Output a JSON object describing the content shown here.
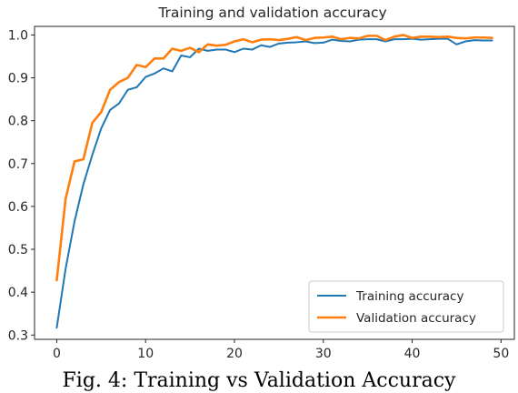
{
  "caption": "Fig. 4: Training vs Validation Accuracy",
  "chart_data": {
    "type": "line",
    "title": "Training and validation accuracy",
    "xlabel": "",
    "ylabel": "",
    "xlim": [
      -2.5,
      51.5
    ],
    "ylim": [
      0.29,
      1.02
    ],
    "xticks": [
      0,
      10,
      20,
      30,
      40,
      50
    ],
    "yticks": [
      0.3,
      0.4,
      0.5,
      0.6,
      0.7,
      0.8,
      0.9,
      1.0
    ],
    "ytick_labels": [
      "0.3",
      "0.4",
      "0.5",
      "0.6",
      "0.7",
      "0.8",
      "0.9",
      "1.0"
    ],
    "grid": false,
    "legend_position": "lower-right",
    "x": [
      0,
      1,
      2,
      3,
      4,
      5,
      6,
      7,
      8,
      9,
      10,
      11,
      12,
      13,
      14,
      15,
      16,
      17,
      18,
      19,
      20,
      21,
      22,
      23,
      24,
      25,
      26,
      27,
      28,
      29,
      30,
      31,
      32,
      33,
      34,
      35,
      36,
      37,
      38,
      39,
      40,
      41,
      42,
      43,
      44,
      45,
      46,
      47,
      48,
      49
    ],
    "series": [
      {
        "name": "Training accuracy",
        "color": "#1f77b4",
        "values": [
          0.317,
          0.455,
          0.565,
          0.652,
          0.72,
          0.782,
          0.825,
          0.84,
          0.872,
          0.878,
          0.902,
          0.91,
          0.922,
          0.915,
          0.952,
          0.948,
          0.968,
          0.963,
          0.966,
          0.966,
          0.96,
          0.968,
          0.966,
          0.976,
          0.972,
          0.98,
          0.982,
          0.983,
          0.985,
          0.981,
          0.982,
          0.989,
          0.986,
          0.985,
          0.989,
          0.99,
          0.99,
          0.985,
          0.99,
          0.99,
          0.991,
          0.989,
          0.99,
          0.991,
          0.991,
          0.978,
          0.985,
          0.988,
          0.987,
          0.987
        ]
      },
      {
        "name": "Validation accuracy",
        "color": "#ff7f0e",
        "values": [
          0.428,
          0.618,
          0.705,
          0.71,
          0.795,
          0.82,
          0.872,
          0.89,
          0.9,
          0.93,
          0.925,
          0.945,
          0.945,
          0.968,
          0.963,
          0.97,
          0.96,
          0.978,
          0.975,
          0.977,
          0.985,
          0.99,
          0.983,
          0.989,
          0.99,
          0.988,
          0.991,
          0.995,
          0.988,
          0.993,
          0.994,
          0.996,
          0.99,
          0.993,
          0.992,
          0.998,
          0.998,
          0.988,
          0.996,
          1.0,
          0.993,
          0.996,
          0.996,
          0.995,
          0.996,
          0.993,
          0.992,
          0.994,
          0.994,
          0.993
        ]
      }
    ]
  }
}
